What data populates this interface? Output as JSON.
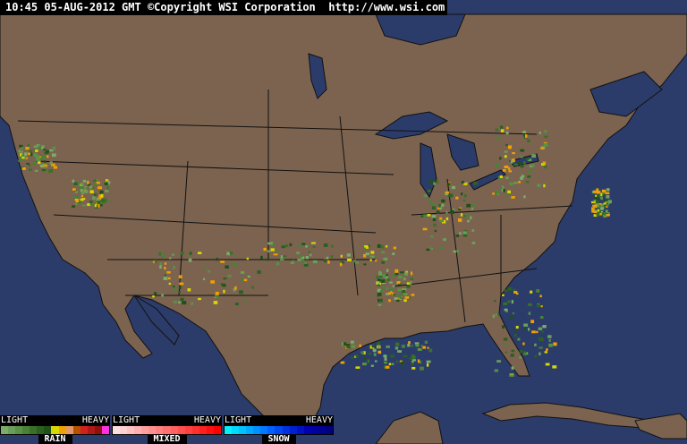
{
  "header": {
    "text": "10:45 05-AUG-2012 GMT ©Copyright WSI Corporation  http://www.wsi.com"
  },
  "colors": {
    "water": "#2c3c6a",
    "land": "#7b6350",
    "border": "#1a1a1a"
  },
  "legend": [
    {
      "name": "RAIN",
      "light": "LIGHT",
      "heavy": "HEAVY",
      "swatches": [
        "#7aac6a",
        "#6a9e5a",
        "#5a9048",
        "#4a8038",
        "#3a7028",
        "#2a6020",
        "#1f5018",
        "#d8d800",
        "#f0a000",
        "#e09868",
        "#b85000",
        "#d02020",
        "#b01818",
        "#901010",
        "#ff30e0"
      ]
    },
    {
      "name": "MIXED",
      "light": "LIGHT",
      "heavy": "HEAVY",
      "swatches": [
        "#ffe0e0",
        "#ffd0d0",
        "#ffc0c0",
        "#ffb0b0",
        "#ffa0a0",
        "#ff9090",
        "#ff8080",
        "#ff7070",
        "#ff6060",
        "#ff5050",
        "#ff4040",
        "#ff3030",
        "#ff2020",
        "#ff1010",
        "#ff0000"
      ]
    },
    {
      "name": "SNOW",
      "light": "LIGHT",
      "heavy": "HEAVY",
      "swatches": [
        "#00f0ff",
        "#00d8ff",
        "#00c0ff",
        "#00a8ff",
        "#0090ff",
        "#0078ff",
        "#0060ff",
        "#0048f0",
        "#0030e0",
        "#0020d0",
        "#0010c0",
        "#0000b0",
        "#0000a0",
        "#000090",
        "#000080"
      ]
    }
  ]
}
